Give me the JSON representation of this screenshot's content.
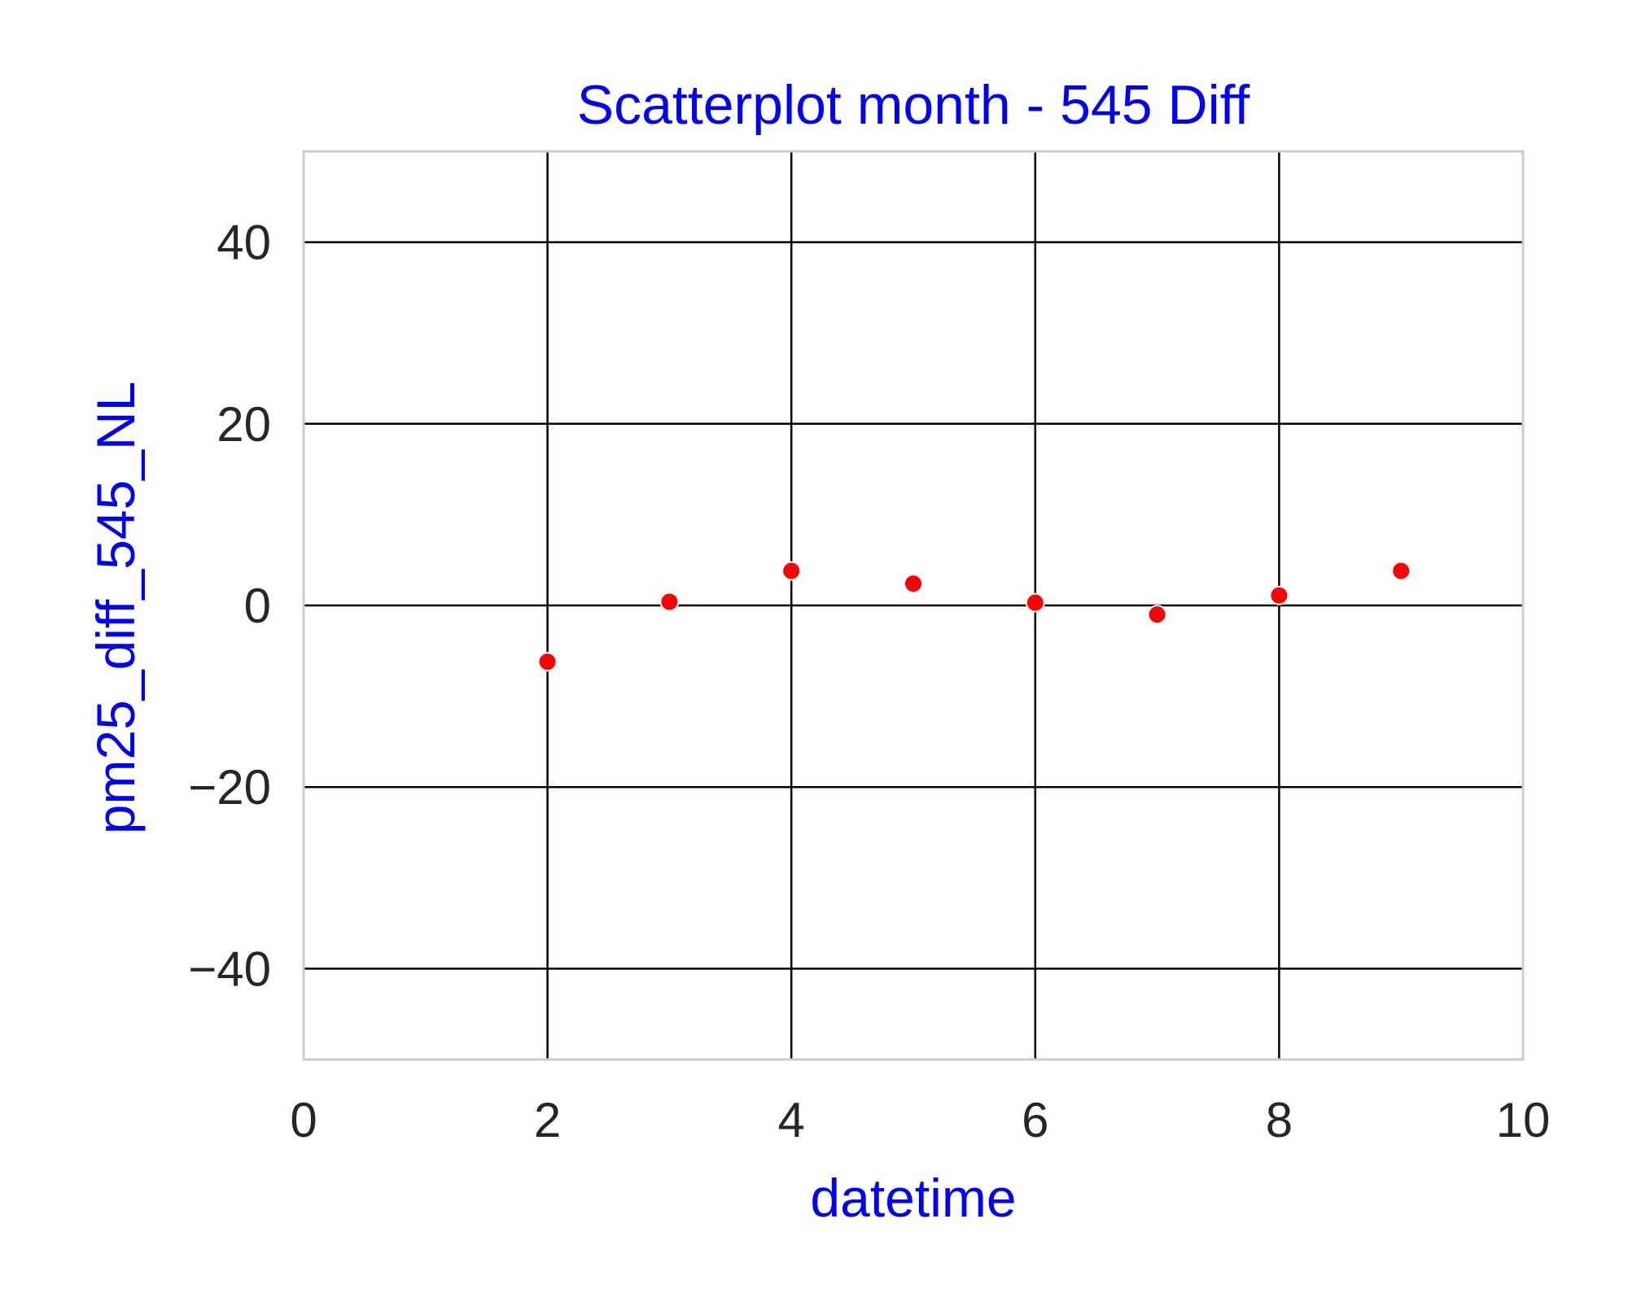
{
  "chart_data": {
    "type": "scatter",
    "title": "Scatterplot month - 545 Diff",
    "xlabel": "datetime",
    "ylabel": "pm25_diff_545_NL",
    "xlim": [
      0,
      10
    ],
    "ylim": [
      -50,
      50
    ],
    "xticks": [
      0,
      2,
      4,
      6,
      8,
      10
    ],
    "yticks": [
      -40,
      -20,
      0,
      20,
      40
    ],
    "xtick_labels": [
      "0",
      "2",
      "4",
      "6",
      "8",
      "10"
    ],
    "ytick_labels": [
      "−40",
      "−20",
      "0",
      "20",
      "40"
    ],
    "grid": true,
    "series": [
      {
        "x": [
          2,
          3,
          4,
          5,
          6,
          7,
          8,
          9
        ],
        "y": [
          -6.2,
          0.4,
          3.8,
          2.4,
          0.3,
          -1.0,
          1.1,
          3.8
        ],
        "color": "#ff0000"
      }
    ],
    "colors": {
      "title": "#0000ff",
      "axis_label": "#0000ff",
      "tick_label": "#262626",
      "grid": "#000000",
      "frame": "#cccccc",
      "marker": "#ff0000",
      "marker_edge": "#ffffff"
    }
  }
}
